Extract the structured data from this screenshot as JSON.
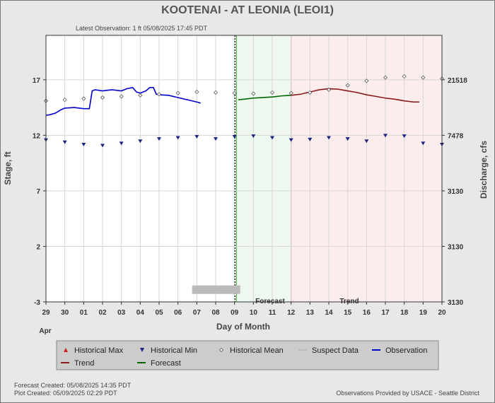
{
  "header": {
    "title": "KOOTENAI - AT LEONIA  (LEOI1)",
    "latest_observation": "Latest Observation: 1 ft 05/08/2025 17:45 PDT"
  },
  "footer": {
    "forecast_created": "Forecast Created: 05/08/2025 14:35 PDT",
    "plot_created": "Plot Created: 05/09/2025 02:29 PDT",
    "provider": "Observations Provided by USACE - Seattle District"
  },
  "legend": {
    "items": [
      {
        "label": "Historical Max",
        "symbol": "triangle-up",
        "color": "#cc2222"
      },
      {
        "label": "Historical Min",
        "symbol": "triangle-down",
        "color": "#1a237e"
      },
      {
        "label": "Historical Mean",
        "symbol": "diamond",
        "color": "#555555"
      },
      {
        "label": "Suspect Data",
        "symbol": "line",
        "color": "#bbbbbb"
      },
      {
        "label": "Observation",
        "symbol": "line",
        "color": "#0000cc"
      },
      {
        "label": "Trend",
        "symbol": "line",
        "color": "#8b1a1a"
      },
      {
        "label": "Forecast",
        "symbol": "line",
        "color": "#006400"
      }
    ]
  },
  "chart_data": {
    "type": "line",
    "xlabel": "Day of Month",
    "ylabel": "Stage, ft",
    "y2label": "Discharge, cfs",
    "month_label": "Apr",
    "x_tick_labels": [
      "29",
      "30",
      "01",
      "02",
      "03",
      "04",
      "05",
      "06",
      "07",
      "08",
      "09",
      "10",
      "11",
      "12",
      "13",
      "14",
      "15",
      "16",
      "17",
      "18",
      "19",
      "20"
    ],
    "xlim": [
      0,
      21
    ],
    "ylim": [
      -3,
      21
    ],
    "y_ticks": [
      -3,
      2,
      7,
      12,
      17
    ],
    "y2_ticks": [
      {
        "stage": 17,
        "label": "21518"
      },
      {
        "stage": 12,
        "label": "7478"
      },
      {
        "stage": 7,
        "label": "3130"
      },
      {
        "stage": 2,
        "label": "3130"
      },
      {
        "stage": -3,
        "label": "3130"
      }
    ],
    "grid": true,
    "forecast_start": 10.1,
    "forecast_end": 13.0,
    "region_labels": {
      "forecast": "Forecast",
      "trend": "Trend"
    },
    "colors": {
      "observation": "#0000cc",
      "forecast": "#006400",
      "trend": "#8b1a1a",
      "historical_min": "#1a237e",
      "historical_mean": "#555555",
      "suspect": "#bbbbbb",
      "forecast_bg": "#eef8ee",
      "trend_bg": "#fdecec"
    },
    "series": [
      {
        "name": "Observation",
        "points": [
          [
            0,
            13.8
          ],
          [
            0.2,
            13.85
          ],
          [
            0.5,
            14.0
          ],
          [
            0.8,
            14.3
          ],
          [
            1.0,
            14.45
          ],
          [
            1.5,
            14.5
          ],
          [
            2.0,
            14.4
          ],
          [
            2.3,
            14.4
          ],
          [
            2.45,
            16.0
          ],
          [
            2.6,
            16.1
          ],
          [
            3.0,
            16.0
          ],
          [
            3.5,
            16.1
          ],
          [
            4.0,
            16.0
          ],
          [
            4.3,
            16.2
          ],
          [
            4.6,
            16.3
          ],
          [
            4.8,
            15.9
          ],
          [
            5.0,
            15.8
          ],
          [
            5.3,
            16.0
          ],
          [
            5.5,
            16.3
          ],
          [
            5.7,
            16.3
          ],
          [
            5.85,
            15.7
          ],
          [
            6.0,
            15.65
          ],
          [
            6.5,
            15.6
          ],
          [
            7.0,
            15.4
          ],
          [
            7.5,
            15.2
          ],
          [
            8.0,
            15.0
          ],
          [
            8.2,
            14.9
          ]
        ]
      },
      {
        "name": "Forecast",
        "points": [
          [
            10.2,
            15.2
          ],
          [
            10.5,
            15.25
          ],
          [
            11.0,
            15.35
          ],
          [
            11.5,
            15.4
          ],
          [
            12.0,
            15.45
          ],
          [
            12.5,
            15.55
          ],
          [
            13.0,
            15.6
          ]
        ]
      },
      {
        "name": "Trend",
        "points": [
          [
            13.0,
            15.6
          ],
          [
            13.5,
            15.7
          ],
          [
            14.0,
            15.9
          ],
          [
            14.5,
            16.1
          ],
          [
            15.0,
            16.2
          ],
          [
            15.5,
            16.15
          ],
          [
            16.0,
            16.0
          ],
          [
            16.5,
            15.85
          ],
          [
            17.0,
            15.65
          ],
          [
            17.5,
            15.5
          ],
          [
            18.0,
            15.35
          ],
          [
            18.5,
            15.25
          ],
          [
            19.0,
            15.1
          ],
          [
            19.5,
            15.0
          ],
          [
            19.8,
            15.0
          ]
        ]
      },
      {
        "name": "Historical Min",
        "points": [
          [
            0,
            11.6
          ],
          [
            1,
            11.4
          ],
          [
            2,
            11.2
          ],
          [
            3,
            11.1
          ],
          [
            4,
            11.3
          ],
          [
            5,
            11.5
          ],
          [
            6,
            11.7
          ],
          [
            7,
            11.8
          ],
          [
            8,
            11.9
          ],
          [
            9,
            11.7
          ],
          [
            10,
            11.9
          ],
          [
            11,
            11.95
          ],
          [
            12,
            11.8
          ],
          [
            13,
            11.6
          ],
          [
            14,
            11.65
          ],
          [
            15,
            11.8
          ],
          [
            16,
            11.7
          ],
          [
            17,
            11.5
          ],
          [
            18,
            12.0
          ],
          [
            19,
            11.95
          ],
          [
            20,
            11.3
          ],
          [
            21,
            11.2
          ]
        ]
      },
      {
        "name": "Historical Mean",
        "points": [
          [
            0,
            15.1
          ],
          [
            1,
            15.2
          ],
          [
            2,
            15.3
          ],
          [
            3,
            15.4
          ],
          [
            4,
            15.5
          ],
          [
            5,
            15.6
          ],
          [
            6,
            15.7
          ],
          [
            7,
            15.8
          ],
          [
            8,
            15.9
          ],
          [
            9,
            15.85
          ],
          [
            10,
            15.8
          ],
          [
            11,
            15.75
          ],
          [
            12,
            15.85
          ],
          [
            13,
            15.8
          ],
          [
            14,
            15.85
          ],
          [
            15,
            16.1
          ],
          [
            16,
            16.5
          ],
          [
            17,
            16.9
          ],
          [
            18,
            17.2
          ],
          [
            19,
            17.3
          ],
          [
            20,
            17.2
          ],
          [
            21,
            17.1
          ]
        ]
      }
    ],
    "suspect_segments": [
      [
        7.75,
        10.3,
        -1.9
      ]
    ]
  }
}
